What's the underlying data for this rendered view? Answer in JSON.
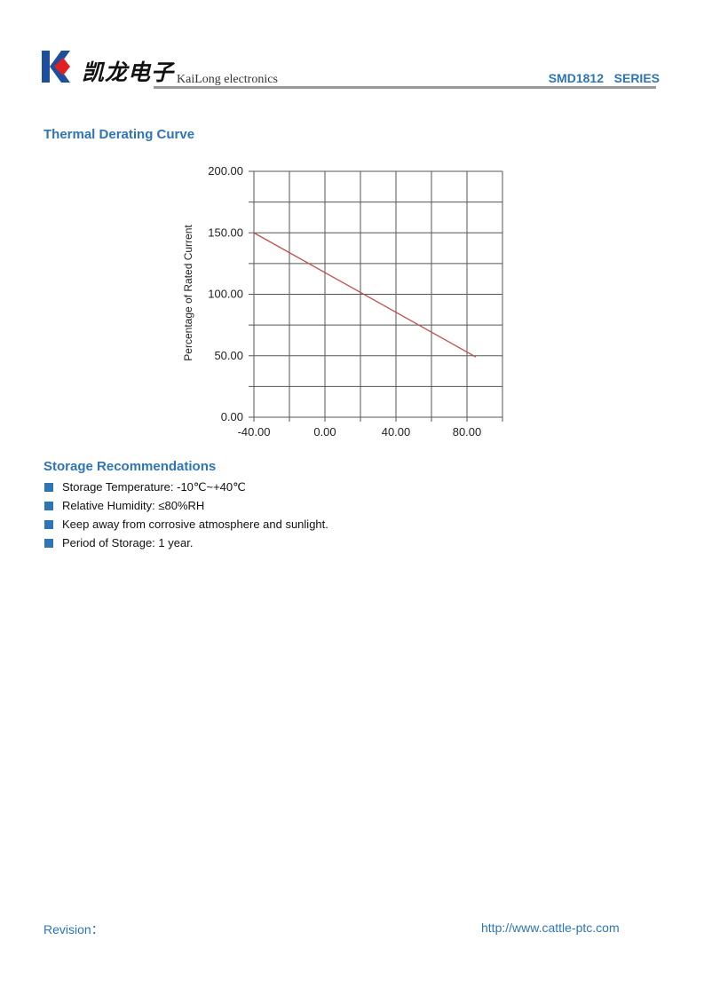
{
  "header": {
    "logo_cn": "凯龙电子",
    "logo_en": "KaiLong electronics",
    "series": "SMD1812   SERIES",
    "colors": {
      "accent": "#2e75b6",
      "logo_blue": "#1f4e9c",
      "logo_red": "#e02020"
    }
  },
  "section1": {
    "title": "Thermal Derating Curve"
  },
  "chart_data": {
    "type": "line",
    "title": "",
    "xlabel": "",
    "ylabel": "Percentage of Rated Current",
    "xlim": [
      -40,
      100
    ],
    "ylim": [
      0,
      200
    ],
    "x_ticks": [
      "-40.00",
      "0.00",
      "40.00",
      "80.00"
    ],
    "y_ticks": [
      "0.00",
      "50.00",
      "100.00",
      "150.00",
      "200.00"
    ],
    "grid": true,
    "x_grid_step": 20,
    "y_grid_step": 25,
    "series": [
      {
        "x": [
          -40,
          85
        ],
        "y": [
          150,
          49
        ],
        "color": "#c0504d"
      }
    ]
  },
  "section2": {
    "title": "Storage Recommendations",
    "items": [
      "Storage Temperature: -10℃~+40℃",
      "Relative Humidity: ≤80%RH",
      "Keep away from corrosive atmosphere and sunlight.",
      "Period of Storage: 1 year."
    ]
  },
  "footer": {
    "revision": "Revision：",
    "url": "http://www.cattle-ptc.com"
  }
}
